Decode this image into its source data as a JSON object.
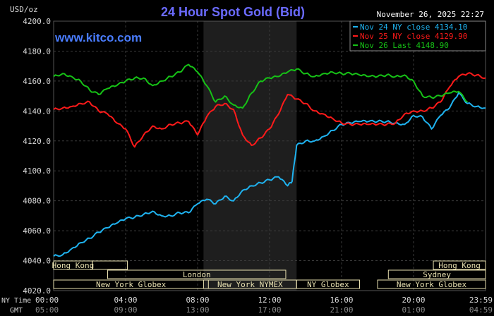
{
  "chart_data": {
    "type": "line",
    "title": "24 Hour Spot Gold (Bid)",
    "brand": "www.kitco.com",
    "date_label": "November 26, 2025 22:27",
    "ylabel": "USD/oz",
    "ylim": [
      4020,
      4200
    ],
    "yticks": [
      "4200.0",
      "4180.0",
      "4160.0",
      "4140.0",
      "4120.0",
      "4100.0",
      "4080.0",
      "4060.0",
      "4040.0",
      "4020.0"
    ],
    "xlim": [
      0,
      24
    ],
    "ny_time_label": "NY Time",
    "gmt_label": "GMT",
    "xticks_ny": [
      "00:00",
      "04:00",
      "08:00",
      "12:00",
      "16:00",
      "20:00",
      "23:59"
    ],
    "xticks_gmt": [
      "05:00",
      "09:00",
      "13:00",
      "17:00",
      "21:00",
      "01:00",
      "04:59"
    ],
    "shaded_range_hours": [
      8.33,
      13.5
    ],
    "colors": {
      "background": "#000000",
      "grid": "#3a3a3a",
      "title": "#6b6bff",
      "brand": "#4a7dff",
      "axis_text": "#d8d8d8",
      "session_bar": "#e8e0b0",
      "session_border": "#666666"
    },
    "series": [
      {
        "name": "Nov 24 NY close 4134.10",
        "color": "#1fb3f0",
        "x": [
          0,
          0.5,
          1,
          1.5,
          2,
          2.5,
          3,
          3.5,
          4,
          4.5,
          5,
          5.5,
          6,
          6.5,
          7,
          7.5,
          8,
          8.5,
          9,
          9.5,
          10,
          10.5,
          11,
          11.5,
          12,
          12.5,
          13,
          13.25,
          13.5,
          14,
          14.5,
          15,
          15.5,
          16,
          16.5,
          17,
          17.5,
          18,
          18.5,
          19,
          19.5,
          20,
          20.5,
          21,
          21.5,
          22,
          22.5,
          23,
          23.5,
          24
        ],
        "y": [
          4043,
          4044,
          4048,
          4052,
          4055,
          4059,
          4062,
          4065,
          4068,
          4069,
          4071,
          4073,
          4070,
          4070,
          4072,
          4072,
          4078,
          4081,
          4078,
          4083,
          4080,
          4087,
          4090,
          4092,
          4094,
          4096,
          4090,
          4093,
          4117,
          4120,
          4120,
          4123,
          4127,
          4131,
          4132,
          4133,
          4133,
          4133,
          4133,
          4132,
          4131,
          4137,
          4136,
          4128,
          4137,
          4142,
          4152,
          4145,
          4143,
          4142
        ]
      },
      {
        "name": "Nov 25 NY close 4129.90",
        "color": "#ff1a1a",
        "x": [
          0,
          0.5,
          1,
          1.5,
          2,
          2.5,
          3,
          3.5,
          4,
          4.5,
          5,
          5.5,
          6,
          6.5,
          7,
          7.5,
          8,
          8.5,
          9,
          9.5,
          10,
          10.5,
          11,
          11.5,
          12,
          12.5,
          13,
          13.5,
          14,
          14.5,
          15,
          15.5,
          16,
          16.5,
          17,
          17.5,
          18,
          18.5,
          19,
          19.5,
          20,
          20.5,
          21,
          21.5,
          22,
          22.5,
          23,
          23.5,
          24
        ],
        "y": [
          4141,
          4142,
          4143,
          4145,
          4146,
          4140,
          4138,
          4132,
          4128,
          4116,
          4124,
          4130,
          4128,
          4131,
          4132,
          4133,
          4124,
          4136,
          4143,
          4145,
          4141,
          4124,
          4117,
          4122,
          4128,
          4138,
          4151,
          4148,
          4145,
          4140,
          4138,
          4135,
          4132,
          4131,
          4131,
          4131,
          4131,
          4131,
          4132,
          4138,
          4140,
          4140,
          4142,
          4146,
          4156,
          4163,
          4165,
          4164,
          4162
        ]
      },
      {
        "name": "Nov 26 Last 4148.90",
        "color": "#16c216",
        "x": [
          0,
          0.5,
          1,
          1.5,
          2,
          2.5,
          3,
          3.5,
          4,
          4.5,
          5,
          5.5,
          6,
          6.5,
          7,
          7.5,
          8,
          8.5,
          9,
          9.5,
          10,
          10.5,
          11,
          11.5,
          12,
          12.5,
          13,
          13.5,
          14,
          14.5,
          15,
          15.5,
          16,
          16.5,
          17,
          17.5,
          18,
          18.5,
          19,
          19.5,
          20,
          20.5,
          21,
          21.5,
          22,
          22.5,
          23
        ],
        "y": [
          4163,
          4165,
          4163,
          4160,
          4154,
          4151,
          4155,
          4157,
          4160,
          4162,
          4162,
          4157,
          4160,
          4163,
          4166,
          4171,
          4166,
          4157,
          4146,
          4150,
          4144,
          4142,
          4152,
          4160,
          4162,
          4163,
          4166,
          4168,
          4165,
          4163,
          4165,
          4166,
          4165,
          4165,
          4164,
          4163,
          4163,
          4164,
          4163,
          4164,
          4160,
          4150,
          4149,
          4150,
          4152,
          4153,
          4146
        ]
      }
    ],
    "sessions": [
      {
        "label": "Hong Kong",
        "start": 0,
        "end": 2.15,
        "row": 0
      },
      {
        "label": "Hong Kong",
        "start": 21.1,
        "end": 24,
        "row": 0
      },
      {
        "label": "Hong Kong",
        "start": 2.15,
        "end": 4.1,
        "row": 0,
        "blank": true
      },
      {
        "label": "London",
        "start": 3.0,
        "end": 12.9,
        "row": 1
      },
      {
        "label": "Sydney",
        "start": 18.6,
        "end": 24,
        "row": 1
      },
      {
        "label": "New York Globex",
        "start": 0,
        "end": 8.6,
        "row": 2
      },
      {
        "label": "New York NYMEX",
        "start": 8.33,
        "end": 13.5,
        "row": 2
      },
      {
        "label": "NY Globex",
        "start": 13.5,
        "end": 17.0,
        "row": 2
      },
      {
        "label": "New York Globex",
        "start": 18.0,
        "end": 24,
        "row": 2
      }
    ]
  }
}
